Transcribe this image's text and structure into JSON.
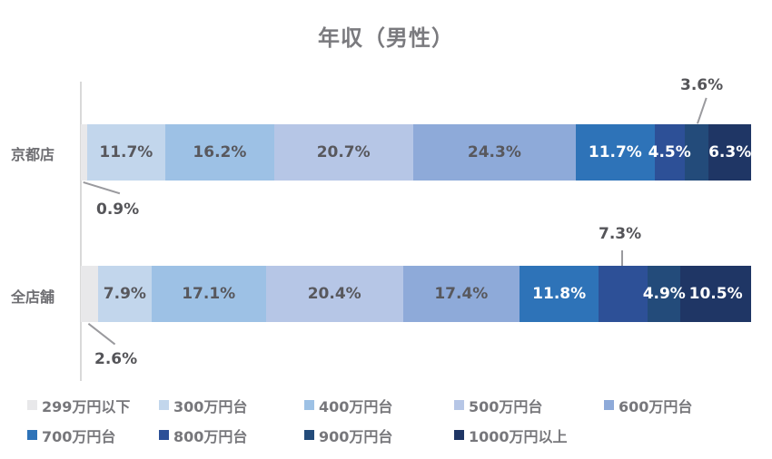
{
  "chart_data": {
    "type": "bar",
    "orientation": "horizontal",
    "stacked": "percent",
    "title": "年収（男性）",
    "xlabel": "",
    "ylabel": "",
    "xlim": [
      0,
      100
    ],
    "grid": false,
    "legend_position": "bottom",
    "categories": [
      "京都店",
      "全店舗"
    ],
    "series": [
      {
        "name": "299万円以下",
        "color": "#e8e8ea",
        "values": [
          0.9,
          2.6
        ]
      },
      {
        "name": "300万円台",
        "color": "#c2d6ec",
        "values": [
          11.7,
          7.9
        ]
      },
      {
        "name": "400万円台",
        "color": "#9dc1e5",
        "values": [
          16.2,
          17.1
        ]
      },
      {
        "name": "500万円台",
        "color": "#b6c6e6",
        "values": [
          20.7,
          20.4
        ]
      },
      {
        "name": "600万円台",
        "color": "#8eaad9",
        "values": [
          24.3,
          17.4
        ]
      },
      {
        "name": "700万円台",
        "color": "#2e73b8",
        "values": [
          11.7,
          11.8
        ]
      },
      {
        "name": "800万円台",
        "color": "#2d5097",
        "values": [
          4.5,
          7.3
        ]
      },
      {
        "name": "900万円台",
        "color": "#234b7a",
        "values": [
          3.6,
          4.9
        ]
      },
      {
        "name": "1000万円以上",
        "color": "#1f3665",
        "values": [
          6.3,
          10.5
        ]
      }
    ]
  },
  "title": "年収（男性）",
  "categories": {
    "kyoto": "京都店",
    "all": "全店舗"
  },
  "labels": {
    "kyoto": [
      "0.9%",
      "11.7%",
      "16.2%",
      "20.7%",
      "24.3%",
      "11.7%",
      "4.5%",
      "3.6%",
      "6.3%"
    ],
    "all": [
      "2.6%",
      "7.9%",
      "17.1%",
      "20.4%",
      "17.4%",
      "11.8%",
      "7.3%",
      "4.9%",
      "10.5%"
    ]
  },
  "legend": [
    {
      "label": "299万円以下",
      "color": "#e8e8ea"
    },
    {
      "label": "300万円台",
      "color": "#c2d6ec"
    },
    {
      "label": "400万円台",
      "color": "#9dc1e5"
    },
    {
      "label": "500万円台",
      "color": "#b6c6e6"
    },
    {
      "label": "600万円台",
      "color": "#8eaad9"
    },
    {
      "label": "700万円台",
      "color": "#2e73b8"
    },
    {
      "label": "800万円台",
      "color": "#2d5097"
    },
    {
      "label": "900万円台",
      "color": "#234b7a"
    },
    {
      "label": "1000万円以上",
      "color": "#1f3665"
    }
  ]
}
